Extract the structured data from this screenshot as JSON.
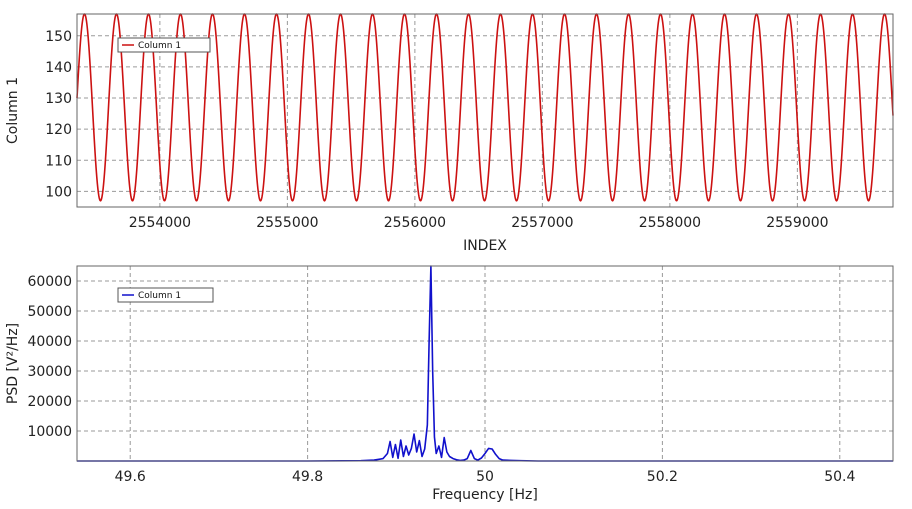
{
  "chart_data": [
    {
      "type": "line",
      "xlabel": "INDEX",
      "ylabel": "Column 1",
      "xlim": [
        2553350,
        2559750
      ],
      "ylim": [
        95,
        157
      ],
      "xticks": [
        2554000,
        2555000,
        2556000,
        2557000,
        2558000,
        2559000
      ],
      "yticks": [
        100,
        110,
        120,
        130,
        140,
        150
      ],
      "xtick_labels": [
        "2554000",
        "2555000",
        "2556000",
        "2557000",
        "2558000",
        "2559000"
      ],
      "ytick_labels": [
        "100",
        "110",
        "120",
        "130",
        "140",
        "150"
      ],
      "grid": true,
      "legend": {
        "position": "top-left",
        "entries": [
          "Column 1"
        ]
      },
      "series": [
        {
          "name": "Column 1",
          "color": "#cc1111",
          "waveform": "sine",
          "min": 97,
          "max": 157,
          "period": 251,
          "start_x": 2553350,
          "start_value": 130
        }
      ]
    },
    {
      "type": "line",
      "xlabel": "Frequency [Hz]",
      "ylabel": "PSD [V²/Hz]",
      "xlim": [
        49.54,
        50.46
      ],
      "ylim": [
        0,
        65000
      ],
      "xticks": [
        49.6,
        49.8,
        50,
        50.2,
        50.4
      ],
      "yticks": [
        10000,
        20000,
        30000,
        40000,
        50000,
        60000
      ],
      "xtick_labels": [
        "49.6",
        "49.8",
        "50",
        "50.2",
        "50.4"
      ],
      "ytick_labels": [
        "10000",
        "20000",
        "30000",
        "40000",
        "50000",
        "60000"
      ],
      "grid": true,
      "legend": {
        "position": "top-left",
        "entries": [
          "Column 1"
        ]
      },
      "series": [
        {
          "name": "Column 1",
          "color": "#1111cc",
          "x": [
            49.54,
            49.6,
            49.7,
            49.8,
            49.86,
            49.875,
            49.885,
            49.89,
            49.893,
            49.896,
            49.899,
            49.902,
            49.905,
            49.908,
            49.911,
            49.914,
            49.917,
            49.92,
            49.923,
            49.926,
            49.929,
            49.932,
            49.935,
            49.937,
            49.939,
            49.941,
            49.943,
            49.945,
            49.948,
            49.951,
            49.954,
            49.957,
            49.96,
            49.964,
            49.968,
            49.972,
            49.976,
            49.98,
            49.984,
            49.988,
            49.992,
            49.996,
            50.0,
            50.004,
            50.008,
            50.012,
            50.016,
            50.02,
            50.03,
            50.04,
            50.06,
            50.1,
            50.2,
            50.3,
            50.46
          ],
          "y": [
            0,
            0,
            0,
            0,
            100,
            300,
            800,
            2500,
            6500,
            1200,
            5500,
            900,
            7000,
            1500,
            5000,
            2000,
            4200,
            9000,
            3000,
            6800,
            1500,
            4000,
            12000,
            40000,
            65000,
            30000,
            8000,
            2500,
            5000,
            1200,
            7800,
            3000,
            1500,
            800,
            400,
            200,
            300,
            800,
            3500,
            800,
            300,
            1000,
            2500,
            4200,
            4000,
            2200,
            800,
            300,
            200,
            100,
            0,
            0,
            0,
            0,
            0
          ]
        }
      ]
    }
  ]
}
